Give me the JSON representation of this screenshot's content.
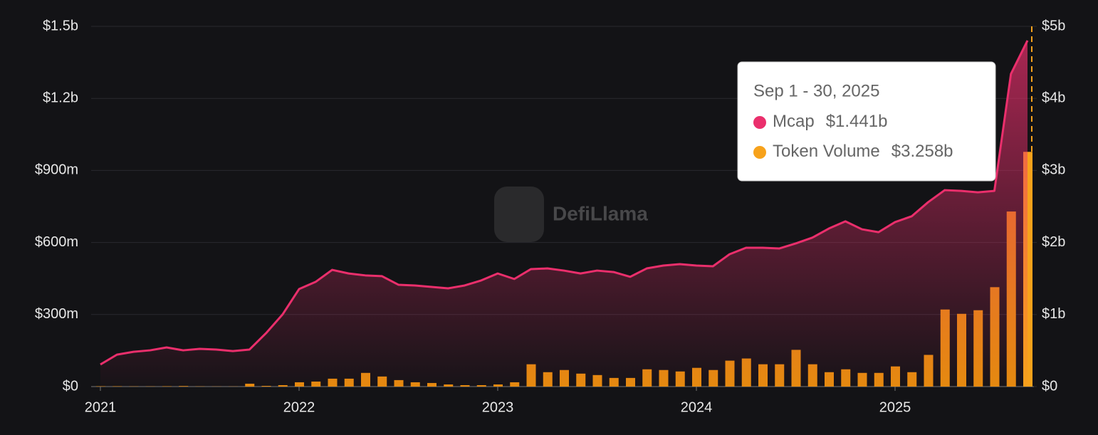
{
  "chart_data": {
    "type": "line-bar",
    "watermark": "DefiLlama",
    "categories": [
      "2021",
      null,
      null,
      null,
      null,
      null,
      null,
      null,
      null,
      null,
      null,
      null,
      "2022",
      null,
      null,
      null,
      null,
      null,
      null,
      null,
      null,
      null,
      null,
      null,
      "2023",
      null,
      null,
      null,
      null,
      null,
      null,
      null,
      null,
      null,
      null,
      null,
      "2024",
      null,
      null,
      null,
      null,
      null,
      null,
      null,
      null,
      null,
      null,
      null,
      "2025",
      null,
      null,
      null,
      null,
      null,
      null,
      null,
      null
    ],
    "series": [
      {
        "name": "Mcap",
        "type": "line",
        "axis": "y",
        "color": "#ea2f6c",
        "values": [
          92000000.0,
          133000000.0,
          145000000.0,
          151000000.0,
          163000000.0,
          151000000.0,
          157000000.0,
          154000000.0,
          148000000.0,
          154000000.0,
          222000000.0,
          300000000.0,
          406000000.0,
          436000000.0,
          486000000.0,
          471000000.0,
          463000000.0,
          460000000.0,
          424000000.0,
          421000000.0,
          415000000.0,
          409000000.0,
          421000000.0,
          442000000.0,
          471000000.0,
          448000000.0,
          489000000.0,
          492000000.0,
          483000000.0,
          471000000.0,
          483000000.0,
          477000000.0,
          457000000.0,
          492000000.0,
          504000000.0,
          510000000.0,
          504000000.0,
          501000000.0,
          551000000.0,
          578000000.0,
          578000000.0,
          575000000.0,
          596000000.0,
          620000000.0,
          658000000.0,
          688000000.0,
          655000000.0,
          643000000.0,
          685000000.0,
          709000000.0,
          768000000.0,
          818000000.0,
          815000000.0,
          809000000.0,
          815000000.0,
          1302000000.0,
          1441000000.0
        ]
      },
      {
        "name": "Token Volume",
        "type": "bar",
        "axis": "y2",
        "color": "#e58b0e",
        "values": [
          5000000.0,
          5000000.0,
          3000000.0,
          3000000.0,
          5000000.0,
          8000000.0,
          3000000.0,
          2000000.0,
          2000000.0,
          40000000.0,
          10000000.0,
          20000000.0,
          60000000.0,
          70000000.0,
          110000000.0,
          110000000.0,
          190000000.0,
          140000000.0,
          90000000.0,
          60000000.0,
          50000000.0,
          30000000.0,
          20000000.0,
          20000000.0,
          30000000.0,
          60000000.0,
          310000000.0,
          200000000.0,
          230000000.0,
          180000000.0,
          160000000.0,
          120000000.0,
          120000000.0,
          240000000.0,
          230000000.0,
          210000000.0,
          260000000.0,
          230000000.0,
          360000000.0,
          390000000.0,
          310000000.0,
          310000000.0,
          510000000.0,
          310000000.0,
          200000000.0,
          240000000.0,
          190000000.0,
          190000000.0,
          280000000.0,
          200000000.0,
          440000000.0,
          1070000000.0,
          1010000000.0,
          1060000000.0,
          1380000000.0,
          2430000000.0,
          3258000000.0
        ]
      }
    ],
    "ylim": [
      0,
      1500000000.0
    ],
    "yticks": [
      {
        "value": 0,
        "label": "$0"
      },
      {
        "value": 300000000.0,
        "label": "$300m"
      },
      {
        "value": 600000000.0,
        "label": "$600m"
      },
      {
        "value": 900000000.0,
        "label": "$900m"
      },
      {
        "value": 1200000000.0,
        "label": "$1.2b"
      },
      {
        "value": 1500000000.0,
        "label": "$1.5b"
      }
    ],
    "y2lim": [
      0,
      5000000000.0
    ],
    "y2ticks": [
      {
        "value": 0,
        "label": "$0"
      },
      {
        "value": 1000000000.0,
        "label": "$1b"
      },
      {
        "value": 2000000000.0,
        "label": "$2b"
      },
      {
        "value": 3000000000.0,
        "label": "$3b"
      },
      {
        "value": 4000000000.0,
        "label": "$4b"
      },
      {
        "value": 5000000000.0,
        "label": "$5b"
      }
    ],
    "grid": true,
    "tooltip": {
      "title": "Sep 1 - 30, 2025",
      "value_labels": [
        "$1.441b",
        "$3.258b"
      ]
    }
  }
}
